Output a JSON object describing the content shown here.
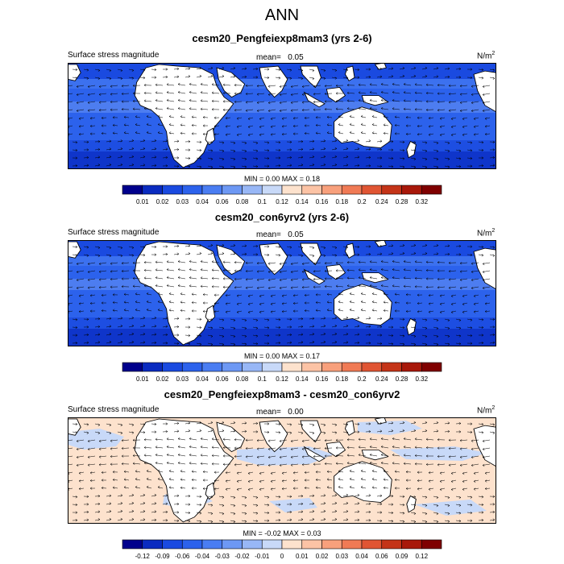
{
  "title": "ANN",
  "colors": {
    "abs_scale": [
      "#00008c",
      "#0a2bc0",
      "#1a4ae0",
      "#2c62ec",
      "#4a7df2",
      "#6d98f4",
      "#98b7f6",
      "#c8d9f8",
      "#fde2cd",
      "#fcc3a5",
      "#f8a07c",
      "#f07a55",
      "#e05533",
      "#c43418",
      "#a8180a",
      "#7f0000"
    ],
    "diff_scale": [
      "#00008c",
      "#0a2bc0",
      "#1a4ae0",
      "#2c62ec",
      "#4a7df2",
      "#6d98f4",
      "#98b7f6",
      "#c8d9f8",
      "#fde2cd",
      "#fcc3a5",
      "#f8a07c",
      "#f07a55",
      "#e05533",
      "#c43418",
      "#a8180a",
      "#7f0000"
    ]
  },
  "panels": [
    {
      "title": "cesm20_Pengfeiexp8mam3 (yrs 2-6)",
      "left_label": "Surface stress magnitude",
      "mean_label": "mean=",
      "mean_value": "0.05",
      "units": "N/m",
      "units_exp": "2",
      "minmax": "MIN =   0.00 MAX =   0.18",
      "ticks": [
        "0.01",
        "0.02",
        "0.03",
        "0.04",
        "0.06",
        "0.08",
        "0.1",
        "0.12",
        "0.14",
        "0.16",
        "0.18",
        "0.2",
        "0.24",
        "0.28",
        "0.32"
      ]
    },
    {
      "title": "cesm20_con6yrv2 (yrs 2-6)",
      "left_label": "Surface stress magnitude",
      "mean_label": "mean=",
      "mean_value": "0.05",
      "units": "N/m",
      "units_exp": "2",
      "minmax": "MIN =   0.00 MAX =   0.17",
      "ticks": [
        "0.01",
        "0.02",
        "0.03",
        "0.04",
        "0.06",
        "0.08",
        "0.1",
        "0.12",
        "0.14",
        "0.16",
        "0.18",
        "0.2",
        "0.24",
        "0.28",
        "0.32"
      ]
    },
    {
      "title": "cesm20_Pengfeiexp8mam3 - cesm20_con6yrv2",
      "left_label": "Surface stress magnitude",
      "mean_label": "mean=",
      "mean_value": "0.00",
      "units": "N/m",
      "units_exp": "2",
      "minmax": "MIN =  -0.02 MAX =   0.03",
      "ticks": [
        "-0.12",
        "-0.09",
        "-0.06",
        "-0.04",
        "-0.03",
        "-0.02",
        "-0.01",
        "0",
        "0.01",
        "0.02",
        "0.03",
        "0.04",
        "0.06",
        "0.09",
        "0.12"
      ]
    }
  ]
}
